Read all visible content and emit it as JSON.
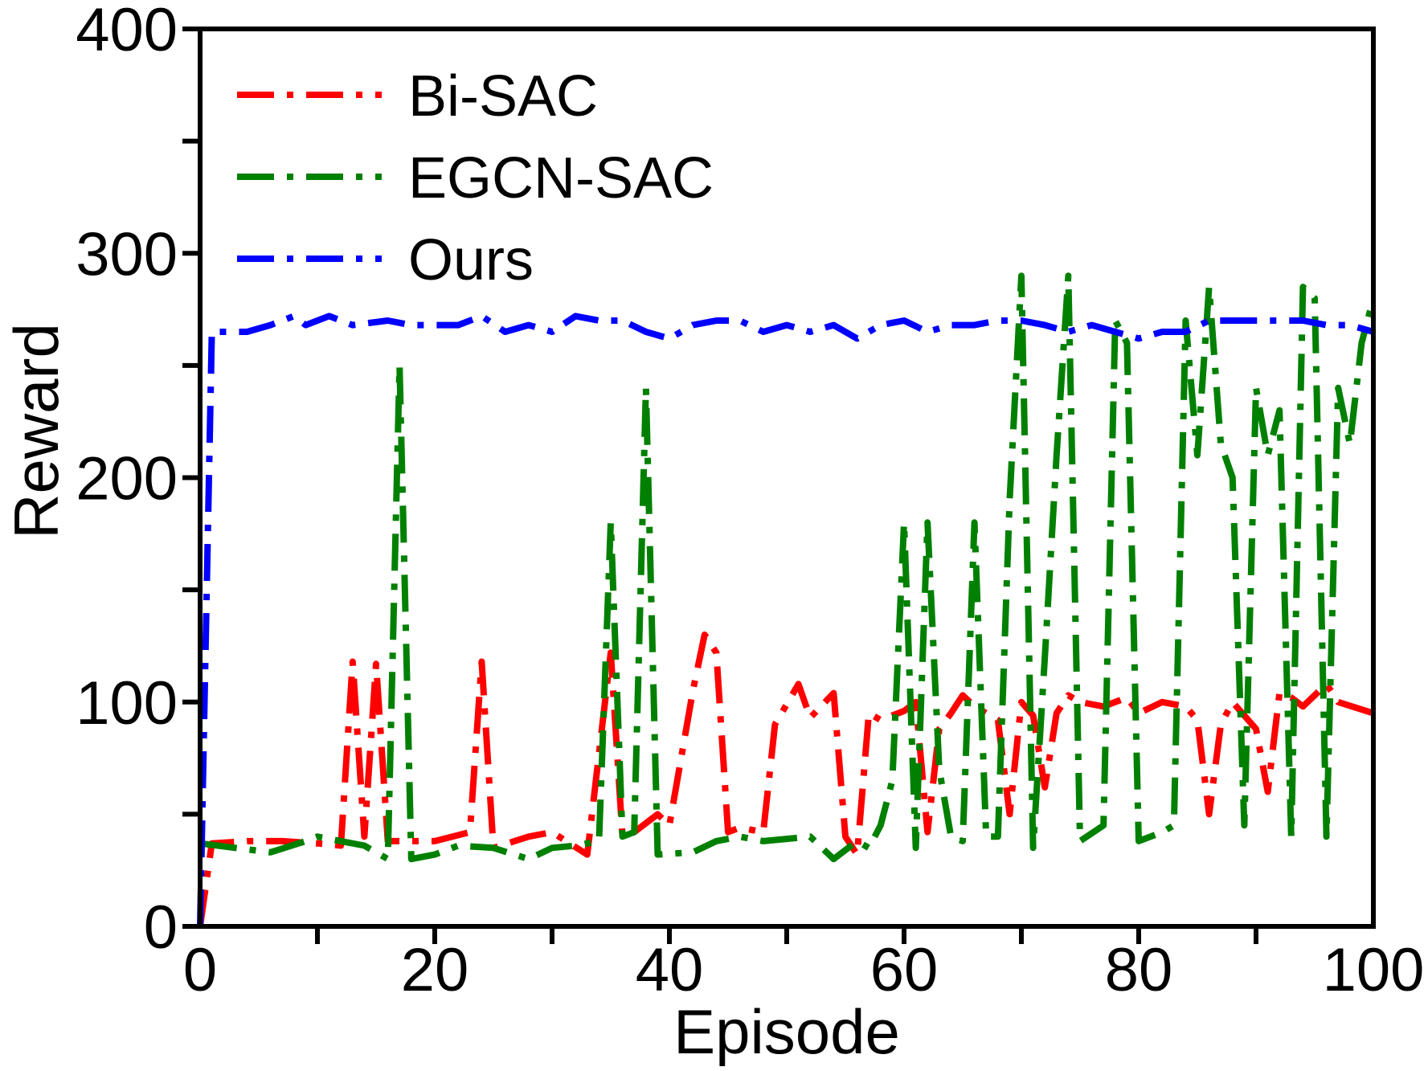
{
  "chart_data": {
    "type": "line",
    "title": "",
    "xlabel": "Episode",
    "ylabel": "Reward",
    "xlim": [
      0,
      100
    ],
    "ylim": [
      0,
      400
    ],
    "x_ticks": [
      0,
      20,
      40,
      60,
      80,
      100
    ],
    "y_ticks": [
      0,
      100,
      200,
      300,
      400
    ],
    "grid": false,
    "legend_position": "top-left",
    "series": [
      {
        "name": "Bi-SAC",
        "color": "#ff0000",
        "dash": "dash-dot",
        "points": [
          [
            0,
            0
          ],
          [
            1,
            37
          ],
          [
            4,
            38
          ],
          [
            7,
            38
          ],
          [
            10,
            37
          ],
          [
            12,
            36
          ],
          [
            13,
            118
          ],
          [
            14,
            40
          ],
          [
            15,
            117
          ],
          [
            16,
            38
          ],
          [
            20,
            38
          ],
          [
            23,
            42
          ],
          [
            24,
            118
          ],
          [
            25,
            35
          ],
          [
            28,
            40
          ],
          [
            30,
            42
          ],
          [
            33,
            32
          ],
          [
            35,
            122
          ],
          [
            36,
            40
          ],
          [
            37,
            42
          ],
          [
            39,
            50
          ],
          [
            40,
            45
          ],
          [
            42,
            105
          ],
          [
            43,
            130
          ],
          [
            44,
            122
          ],
          [
            45,
            42
          ],
          [
            46,
            44
          ],
          [
            48,
            42
          ],
          [
            49,
            90
          ],
          [
            51,
            108
          ],
          [
            52,
            93
          ],
          [
            54,
            104
          ],
          [
            55,
            40
          ],
          [
            56,
            32
          ],
          [
            57,
            95
          ],
          [
            58,
            92
          ],
          [
            60,
            96
          ],
          [
            61,
            100
          ],
          [
            62,
            42
          ],
          [
            63,
            88
          ],
          [
            64,
            95
          ],
          [
            65,
            103
          ],
          [
            66,
            98
          ],
          [
            67,
            95
          ],
          [
            68,
            92
          ],
          [
            69,
            50
          ],
          [
            70,
            100
          ],
          [
            71,
            94
          ],
          [
            72,
            62
          ],
          [
            73,
            95
          ],
          [
            74,
            103
          ],
          [
            75,
            100
          ],
          [
            77,
            98
          ],
          [
            79,
            102
          ],
          [
            80,
            95
          ],
          [
            82,
            100
          ],
          [
            84,
            98
          ],
          [
            85,
            92
          ],
          [
            86,
            50
          ],
          [
            87,
            90
          ],
          [
            88,
            100
          ],
          [
            90,
            88
          ],
          [
            91,
            60
          ],
          [
            92,
            104
          ],
          [
            93,
            102
          ],
          [
            94,
            98
          ],
          [
            96,
            108
          ],
          [
            97,
            100
          ],
          [
            100,
            95
          ]
        ]
      },
      {
        "name": "EGCN-SAC",
        "color": "#008000",
        "dash": "dash-dot",
        "points": [
          [
            0,
            37
          ],
          [
            3,
            35
          ],
          [
            6,
            33
          ],
          [
            9,
            38
          ],
          [
            10,
            40
          ],
          [
            12,
            38
          ],
          [
            14,
            36
          ],
          [
            16,
            30
          ],
          [
            17,
            250
          ],
          [
            18,
            30
          ],
          [
            20,
            32
          ],
          [
            22,
            36
          ],
          [
            25,
            35
          ],
          [
            28,
            30
          ],
          [
            30,
            35
          ],
          [
            32,
            36
          ],
          [
            34,
            38
          ],
          [
            35,
            180
          ],
          [
            36,
            40
          ],
          [
            37,
            42
          ],
          [
            38,
            240
          ],
          [
            39,
            32
          ],
          [
            42,
            33
          ],
          [
            44,
            38
          ],
          [
            46,
            40
          ],
          [
            48,
            38
          ],
          [
            50,
            39
          ],
          [
            52,
            40
          ],
          [
            54,
            30
          ],
          [
            56,
            38
          ],
          [
            57,
            35
          ],
          [
            58,
            45
          ],
          [
            59,
            65
          ],
          [
            60,
            180
          ],
          [
            61,
            35
          ],
          [
            62,
            180
          ],
          [
            63,
            70
          ],
          [
            64,
            40
          ],
          [
            65,
            38
          ],
          [
            66,
            180
          ],
          [
            67,
            40
          ],
          [
            68,
            40
          ],
          [
            69,
            190
          ],
          [
            70,
            290
          ],
          [
            71,
            35
          ],
          [
            72,
            120
          ],
          [
            73,
            210
          ],
          [
            74,
            290
          ],
          [
            75,
            38
          ],
          [
            77,
            45
          ],
          [
            78,
            270
          ],
          [
            79,
            260
          ],
          [
            80,
            38
          ],
          [
            82,
            42
          ],
          [
            83,
            45
          ],
          [
            84,
            270
          ],
          [
            85,
            210
          ],
          [
            86,
            285
          ],
          [
            87,
            215
          ],
          [
            88,
            200
          ],
          [
            89,
            45
          ],
          [
            90,
            240
          ],
          [
            91,
            210
          ],
          [
            92,
            230
          ],
          [
            93,
            40
          ],
          [
            94,
            285
          ],
          [
            95,
            280
          ],
          [
            96,
            40
          ],
          [
            97,
            240
          ],
          [
            98,
            215
          ],
          [
            99,
            260
          ],
          [
            100,
            280
          ]
        ]
      },
      {
        "name": "Ours",
        "color": "#0000ff",
        "dash": "dash-dot",
        "points": [
          [
            0,
            0
          ],
          [
            1,
            265
          ],
          [
            2,
            265
          ],
          [
            4,
            265
          ],
          [
            6,
            268
          ],
          [
            8,
            272
          ],
          [
            9,
            268
          ],
          [
            11,
            272
          ],
          [
            13,
            268
          ],
          [
            16,
            270
          ],
          [
            18,
            268
          ],
          [
            20,
            268
          ],
          [
            22,
            268
          ],
          [
            24,
            272
          ],
          [
            26,
            265
          ],
          [
            28,
            268
          ],
          [
            30,
            265
          ],
          [
            32,
            272
          ],
          [
            34,
            270
          ],
          [
            36,
            270
          ],
          [
            38,
            265
          ],
          [
            40,
            262
          ],
          [
            42,
            268
          ],
          [
            44,
            270
          ],
          [
            46,
            270
          ],
          [
            48,
            265
          ],
          [
            50,
            268
          ],
          [
            52,
            265
          ],
          [
            54,
            268
          ],
          [
            56,
            262
          ],
          [
            58,
            268
          ],
          [
            60,
            270
          ],
          [
            62,
            265
          ],
          [
            64,
            268
          ],
          [
            66,
            268
          ],
          [
            68,
            270
          ],
          [
            70,
            270
          ],
          [
            72,
            268
          ],
          [
            74,
            265
          ],
          [
            76,
            268
          ],
          [
            78,
            265
          ],
          [
            80,
            262
          ],
          [
            82,
            265
          ],
          [
            84,
            265
          ],
          [
            86,
            270
          ],
          [
            88,
            270
          ],
          [
            90,
            270
          ],
          [
            92,
            270
          ],
          [
            94,
            270
          ],
          [
            96,
            268
          ],
          [
            98,
            268
          ],
          [
            100,
            265
          ]
        ]
      }
    ]
  }
}
